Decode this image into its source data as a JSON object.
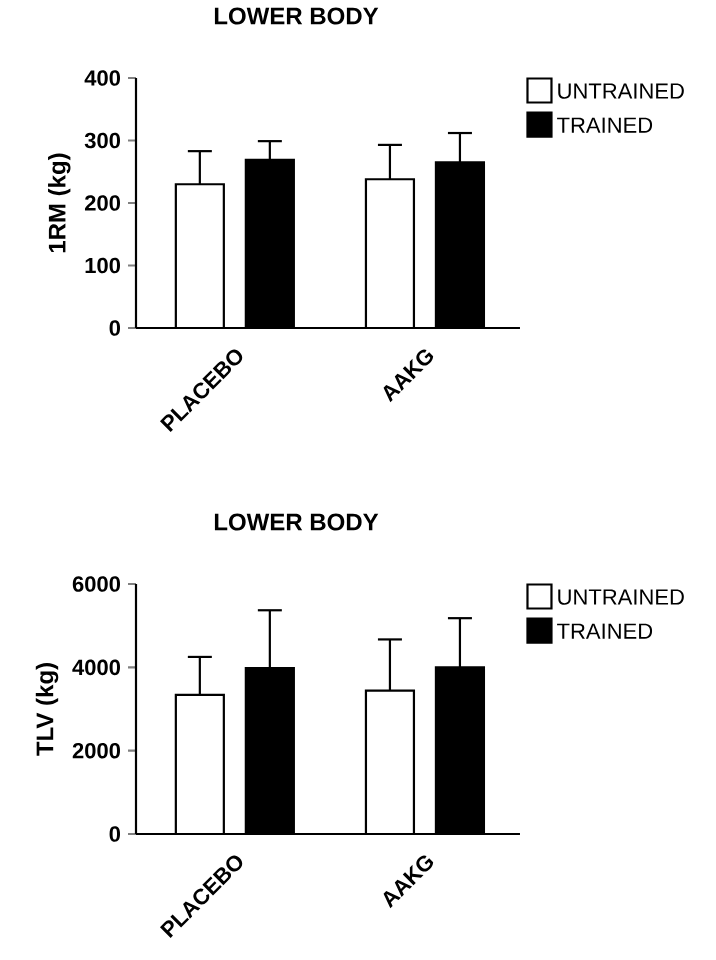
{
  "chart_data": [
    {
      "type": "bar",
      "title": "LOWER BODY",
      "ylabel": "1RM (kg)",
      "categories": [
        "PLACEBO",
        "AAKG"
      ],
      "series": [
        {
          "name": "UNTRAINED",
          "color": "#ffffff",
          "values": [
            230,
            238
          ],
          "errors": [
            [
              230,
              283
            ],
            [
              238,
              293
            ]
          ]
        },
        {
          "name": "TRAINED",
          "color": "#000000",
          "values": [
            269,
            265
          ],
          "errors": [
            [
              269,
              299
            ],
            [
              265,
              312
            ]
          ]
        }
      ],
      "ylim": [
        0,
        400
      ],
      "yticks": [
        0,
        100,
        200,
        300,
        400
      ],
      "legend": "top right"
    },
    {
      "type": "bar",
      "title": "LOWER BODY",
      "ylabel": "TLV (kg)",
      "categories": [
        "PLACEBO",
        "AAKG"
      ],
      "series": [
        {
          "name": "UNTRAINED",
          "color": "#ffffff",
          "values": [
            3340,
            3440
          ],
          "errors": [
            [
              3340,
              4250
            ],
            [
              3440,
              4670
            ]
          ]
        },
        {
          "name": "TRAINED",
          "color": "#000000",
          "values": [
            3980,
            4000
          ],
          "errors": [
            [
              3980,
              5370
            ],
            [
              4000,
              5180
            ]
          ]
        }
      ],
      "ylim": [
        0,
        6000
      ],
      "yticks": [
        0,
        2000,
        4000,
        6000
      ],
      "legend": "top right"
    }
  ]
}
